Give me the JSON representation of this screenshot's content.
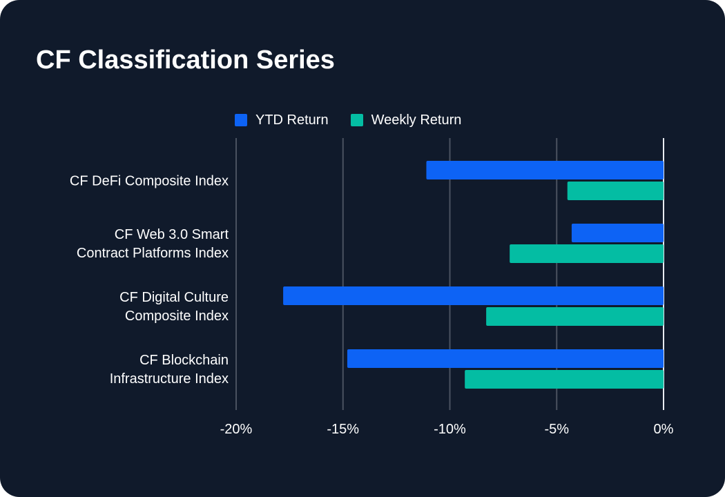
{
  "chart_data": {
    "type": "bar",
    "orientation": "horizontal",
    "title": "CF Classification Series",
    "categories": [
      [
        "CF DeFi Composite Index"
      ],
      [
        "CF Web 3.0 Smart",
        "Contract Platforms Index"
      ],
      [
        "CF Digital Culture",
        "Composite Index"
      ],
      [
        "CF Blockchain",
        "Infrastructure Index"
      ]
    ],
    "series": [
      {
        "name": "YTD Return",
        "color": "#0d63f5",
        "values": [
          -11.1,
          -4.3,
          -17.8,
          -14.8
        ]
      },
      {
        "name": "Weekly Return",
        "color": "#04bda3",
        "values": [
          -4.5,
          -7.2,
          -8.3,
          -9.3
        ]
      }
    ],
    "xlim": [
      -20,
      0
    ],
    "ticks": [
      -20,
      -15,
      -10,
      -5,
      0
    ],
    "tick_labels": [
      "-20%",
      "-15%",
      "-10%",
      "-5%",
      "0%"
    ],
    "xlabel": "",
    "ylabel": "",
    "grid": true,
    "legend": "top"
  }
}
